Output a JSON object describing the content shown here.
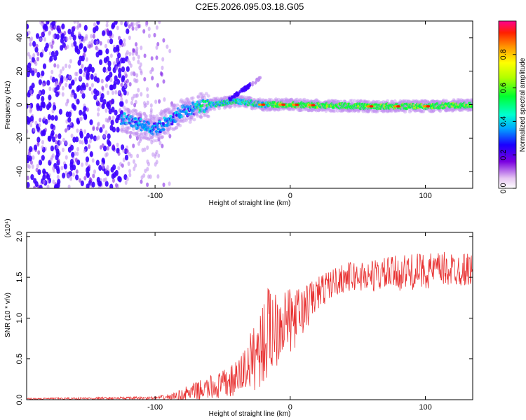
{
  "title": "C2E5.2026.095.03.18.G05",
  "colorbar": {
    "label": "Normalized spectral amplitude",
    "ticks": [
      0.0,
      0.2,
      0.4,
      0.6,
      0.8
    ],
    "tick_labels": [
      "0.0",
      "0.2",
      "0.4",
      "0.6",
      "0.8"
    ]
  },
  "chart_data": [
    {
      "type": "heatmap",
      "title": "C2E5.2026.095.03.18.G05",
      "xlabel": "Height of straight line (km)",
      "ylabel": "Frequency (Hz)",
      "xlim": [
        -195,
        135
      ],
      "ylim": [
        -50,
        50
      ],
      "xticks": [
        -100,
        0,
        100
      ],
      "xtick_labels": [
        "-100",
        "0",
        "100"
      ],
      "yticks": [
        -40,
        -20,
        0,
        20,
        40
      ],
      "ytick_labels": [
        "-40",
        "-20",
        "0",
        "20",
        "40"
      ],
      "colorscale": "rainbow (violet=0 → red=1)",
      "features": {
        "noise_region_x": [
          -195,
          -85
        ],
        "main_signal_center_hz": [
          [
            -125,
            -8
          ],
          [
            -100,
            -15
          ],
          [
            -80,
            -4
          ],
          [
            -60,
            0
          ],
          [
            -40,
            2
          ],
          [
            -20,
            0
          ],
          [
            0,
            0
          ],
          [
            50,
            -1
          ],
          [
            100,
            -1
          ],
          [
            135,
            0
          ]
        ],
        "chirp_branch": [
          [
            -45,
            3
          ],
          [
            -30,
            9
          ],
          [
            -22,
            16
          ]
        ],
        "peak_amplitude_spots_x": [
          -20,
          -5,
          5,
          17,
          60,
          80,
          102
        ]
      }
    },
    {
      "type": "line",
      "xlabel": "Height of straight line (km)",
      "ylabel": "SNR (10 * v/v)",
      "y_scale_note": "(x10⁴)",
      "xlim": [
        -195,
        135
      ],
      "ylim": [
        0,
        2.05
      ],
      "xticks": [
        -100,
        0,
        100
      ],
      "xtick_labels": [
        "-100",
        "0",
        "100"
      ],
      "yticks": [
        0,
        0.5,
        1.0,
        1.5,
        2.0
      ],
      "ytick_labels": [
        "0.0",
        "0.5",
        "1.0",
        "1.5",
        "2.0"
      ],
      "color": "#e83030",
      "series": [
        {
          "name": "SNR",
          "envelope": {
            "x": [
              -195,
              -100,
              -85,
              -75,
              -65,
              -50,
              -40,
              -30,
              -20,
              -15,
              -10,
              -5,
              0,
              10,
              20,
              30,
              40,
              60,
              80,
              100,
              120,
              135
            ],
            "mean": [
              0.01,
              0.02,
              0.04,
              0.08,
              0.12,
              0.18,
              0.25,
              0.45,
              0.7,
              0.85,
              0.95,
              1.0,
              0.95,
              1.1,
              1.3,
              1.42,
              1.5,
              1.52,
              1.55,
              1.58,
              1.6,
              1.6
            ],
            "spread": [
              0.01,
              0.02,
              0.05,
              0.1,
              0.13,
              0.18,
              0.22,
              0.35,
              0.55,
              0.6,
              0.55,
              0.45,
              0.4,
              0.3,
              0.22,
              0.18,
              0.18,
              0.2,
              0.22,
              0.22,
              0.22,
              0.2
            ]
          }
        }
      ]
    }
  ]
}
